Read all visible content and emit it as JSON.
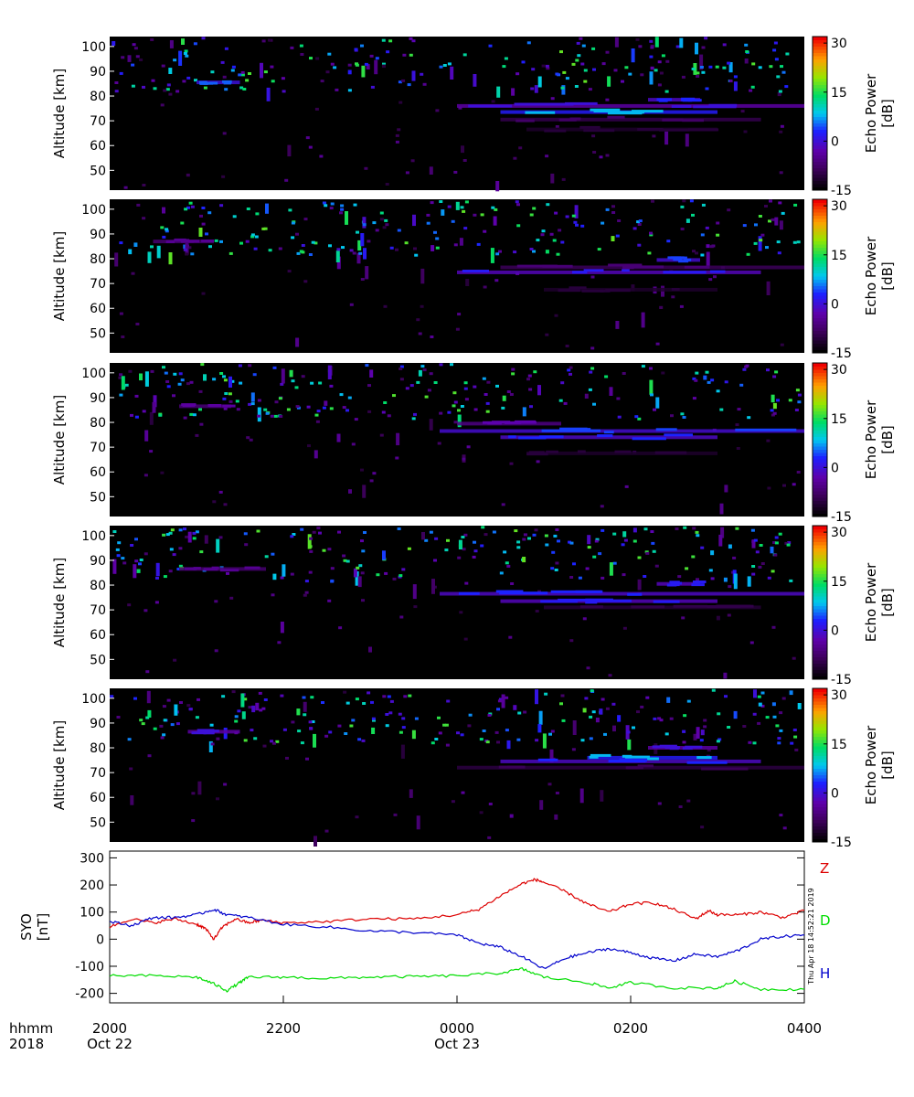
{
  "chart_data": [
    {
      "type": "heatmap",
      "panel": 1,
      "ylabel": "Altitude [km]",
      "y_ticks": [
        50,
        60,
        70,
        80,
        90,
        100
      ],
      "ylim": [
        42,
        104
      ],
      "xlim": [
        0,
        8
      ],
      "colorbar": {
        "label_line1": "Echo Power",
        "label_line2": "[dB]",
        "ticks": [
          -15,
          0,
          15,
          30
        ],
        "range": [
          -15,
          32
        ]
      },
      "layers": [
        {
          "altitude": 85.5,
          "t_start": 1.0,
          "t_end": 1.5,
          "db": 5
        },
        {
          "altitude": 76.0,
          "t_start": 4.0,
          "t_end": 8.0,
          "db": 0
        },
        {
          "altitude": 73.5,
          "t_start": 4.5,
          "t_end": 7.0,
          "db": 8
        },
        {
          "altitude": 78.5,
          "t_start": 6.2,
          "t_end": 6.8,
          "db": 3
        },
        {
          "altitude": 70.5,
          "t_start": 4.5,
          "t_end": 7.5,
          "db": -8
        },
        {
          "altitude": 66.5,
          "t_start": 4.8,
          "t_end": 7.0,
          "db": -11
        }
      ]
    },
    {
      "type": "heatmap",
      "panel": 2,
      "ylabel": "Altitude [km]",
      "y_ticks": [
        50,
        60,
        70,
        80,
        90,
        100
      ],
      "ylim": [
        42,
        104
      ],
      "xlim": [
        0,
        8
      ],
      "colorbar": {
        "label_line1": "Echo Power",
        "label_line2": "[dB]",
        "ticks": [
          -15,
          0,
          15,
          30
        ],
        "range": [
          -15,
          32
        ]
      },
      "layers": [
        {
          "altitude": 87.0,
          "t_start": 0.5,
          "t_end": 1.2,
          "db": -5
        },
        {
          "altitude": 74.5,
          "t_start": 4.0,
          "t_end": 7.5,
          "db": 2
        },
        {
          "altitude": 79.5,
          "t_start": 6.3,
          "t_end": 6.8,
          "db": 4
        },
        {
          "altitude": 76.5,
          "t_start": 4.5,
          "t_end": 8.0,
          "db": -7
        },
        {
          "altitude": 67.5,
          "t_start": 5.0,
          "t_end": 7.0,
          "db": -11
        }
      ]
    },
    {
      "type": "heatmap",
      "panel": 3,
      "ylabel": "Altitude [km]",
      "y_ticks": [
        50,
        60,
        70,
        80,
        90,
        100
      ],
      "ylim": [
        42,
        104
      ],
      "xlim": [
        0,
        8
      ],
      "colorbar": {
        "label_line1": "Echo Power",
        "label_line2": "[dB]",
        "ticks": [
          -15,
          0,
          15,
          30
        ],
        "range": [
          -15,
          32
        ]
      },
      "layers": [
        {
          "altitude": 86.5,
          "t_start": 0.8,
          "t_end": 1.4,
          "db": -4
        },
        {
          "altitude": 76.5,
          "t_start": 3.8,
          "t_end": 8.0,
          "db": 4
        },
        {
          "altitude": 74.0,
          "t_start": 4.5,
          "t_end": 7.0,
          "db": 3
        },
        {
          "altitude": 79.5,
          "t_start": 4.0,
          "t_end": 5.2,
          "db": -3
        },
        {
          "altitude": 67.5,
          "t_start": 4.8,
          "t_end": 7.0,
          "db": -11
        }
      ]
    },
    {
      "type": "heatmap",
      "panel": 4,
      "ylabel": "Altitude [km]",
      "y_ticks": [
        50,
        60,
        70,
        80,
        90,
        100
      ],
      "ylim": [
        42,
        104
      ],
      "xlim": [
        0,
        8
      ],
      "colorbar": {
        "label_line1": "Echo Power",
        "label_line2": "[dB]",
        "ticks": [
          -15,
          0,
          15,
          30
        ],
        "range": [
          -15,
          32
        ]
      },
      "layers": [
        {
          "altitude": 86.5,
          "t_start": 0.8,
          "t_end": 1.8,
          "db": -5
        },
        {
          "altitude": 76.5,
          "t_start": 3.8,
          "t_end": 8.0,
          "db": 3
        },
        {
          "altitude": 73.5,
          "t_start": 4.5,
          "t_end": 7.0,
          "db": 2
        },
        {
          "altitude": 80.5,
          "t_start": 6.3,
          "t_end": 6.8,
          "db": 2
        },
        {
          "altitude": 71.0,
          "t_start": 5.0,
          "t_end": 7.5,
          "db": -10
        }
      ]
    },
    {
      "type": "heatmap",
      "panel": 5,
      "ylabel": "Altitude [km]",
      "y_ticks": [
        50,
        60,
        70,
        80,
        90,
        100
      ],
      "ylim": [
        42,
        104
      ],
      "xlim": [
        0,
        8
      ],
      "colorbar": {
        "label_line1": "Echo Power",
        "label_line2": "[dB]",
        "ticks": [
          -15,
          0,
          15,
          30
        ],
        "range": [
          -15,
          32
        ]
      },
      "layers": [
        {
          "altitude": 86.5,
          "t_start": 0.9,
          "t_end": 1.5,
          "db": 0
        },
        {
          "altitude": 74.5,
          "t_start": 4.5,
          "t_end": 7.5,
          "db": 3
        },
        {
          "altitude": 76.0,
          "t_start": 5.5,
          "t_end": 7.0,
          "db": 8
        },
        {
          "altitude": 80.0,
          "t_start": 6.2,
          "t_end": 7.0,
          "db": 0
        },
        {
          "altitude": 72.0,
          "t_start": 4.0,
          "t_end": 8.0,
          "db": -9
        }
      ]
    },
    {
      "type": "line",
      "panel": 6,
      "ylabel_line1": "SYO",
      "ylabel_line2": "[nT]",
      "y_ticks": [
        -200,
        -100,
        0,
        100,
        200,
        300
      ],
      "ylim": [
        -235,
        325
      ],
      "xlim": [
        0,
        8
      ],
      "timestamp": "Thu Apr 18 14:52:21 2019",
      "series": [
        {
          "name": "Z",
          "color": "#dd0000",
          "points": [
            [
              0,
              45
            ],
            [
              0.25,
              75
            ],
            [
              0.5,
              60
            ],
            [
              0.75,
              75
            ],
            [
              1.0,
              55
            ],
            [
              1.1,
              40
            ],
            [
              1.2,
              0
            ],
            [
              1.3,
              45
            ],
            [
              1.45,
              75
            ],
            [
              1.6,
              60
            ],
            [
              1.75,
              70
            ],
            [
              2.0,
              60
            ],
            [
              2.5,
              65
            ],
            [
              3.0,
              75
            ],
            [
              3.5,
              75
            ],
            [
              4.0,
              90
            ],
            [
              4.25,
              110
            ],
            [
              4.5,
              160
            ],
            [
              4.75,
              205
            ],
            [
              4.9,
              220
            ],
            [
              5.0,
              210
            ],
            [
              5.25,
              175
            ],
            [
              5.5,
              130
            ],
            [
              5.75,
              100
            ],
            [
              6.0,
              130
            ],
            [
              6.25,
              135
            ],
            [
              6.5,
              110
            ],
            [
              6.75,
              75
            ],
            [
              6.9,
              105
            ],
            [
              7.0,
              90
            ],
            [
              7.25,
              90
            ],
            [
              7.5,
              100
            ],
            [
              7.75,
              80
            ],
            [
              8.0,
              105
            ]
          ]
        },
        {
          "name": "D",
          "color": "#00dd00",
          "points": [
            [
              0,
              -135
            ],
            [
              0.5,
              -135
            ],
            [
              1.0,
              -140
            ],
            [
              1.2,
              -165
            ],
            [
              1.35,
              -190
            ],
            [
              1.5,
              -160
            ],
            [
              1.6,
              -140
            ],
            [
              2.0,
              -140
            ],
            [
              2.5,
              -145
            ],
            [
              3.0,
              -140
            ],
            [
              3.5,
              -138
            ],
            [
              4.0,
              -135
            ],
            [
              4.5,
              -125
            ],
            [
              4.75,
              -110
            ],
            [
              5.0,
              -140
            ],
            [
              5.5,
              -160
            ],
            [
              5.75,
              -180
            ],
            [
              6.0,
              -160
            ],
            [
              6.5,
              -180
            ],
            [
              7.0,
              -180
            ],
            [
              7.2,
              -155
            ],
            [
              7.5,
              -185
            ],
            [
              8.0,
              -185
            ]
          ]
        },
        {
          "name": "H",
          "color": "#0000cc",
          "points": [
            [
              0,
              65
            ],
            [
              0.25,
              50
            ],
            [
              0.5,
              80
            ],
            [
              0.75,
              80
            ],
            [
              1.0,
              90
            ],
            [
              1.2,
              110
            ],
            [
              1.35,
              90
            ],
            [
              1.6,
              80
            ],
            [
              2.0,
              55
            ],
            [
              2.5,
              45
            ],
            [
              3.0,
              30
            ],
            [
              3.5,
              25
            ],
            [
              4.0,
              15
            ],
            [
              4.25,
              -15
            ],
            [
              4.5,
              -30
            ],
            [
              4.75,
              -65
            ],
            [
              5.0,
              -110
            ],
            [
              5.25,
              -70
            ],
            [
              5.5,
              -50
            ],
            [
              5.75,
              -35
            ],
            [
              6.0,
              -50
            ],
            [
              6.25,
              -70
            ],
            [
              6.5,
              -80
            ],
            [
              6.75,
              -55
            ],
            [
              7.0,
              -65
            ],
            [
              7.25,
              -40
            ],
            [
              7.5,
              0
            ],
            [
              7.75,
              10
            ],
            [
              8.0,
              15
            ]
          ]
        }
      ]
    }
  ],
  "x_axis": {
    "ticks": [
      {
        "value": 0,
        "top": "2000",
        "bottom": "Oct 22"
      },
      {
        "value": 2,
        "top": "2200",
        "bottom": ""
      },
      {
        "value": 4,
        "top": "0000",
        "bottom": "Oct 23"
      },
      {
        "value": 6,
        "top": "0200",
        "bottom": ""
      },
      {
        "value": 8,
        "top": "0400",
        "bottom": ""
      }
    ],
    "row_label_top": "hhmm",
    "row_label_bottom": "2018"
  }
}
